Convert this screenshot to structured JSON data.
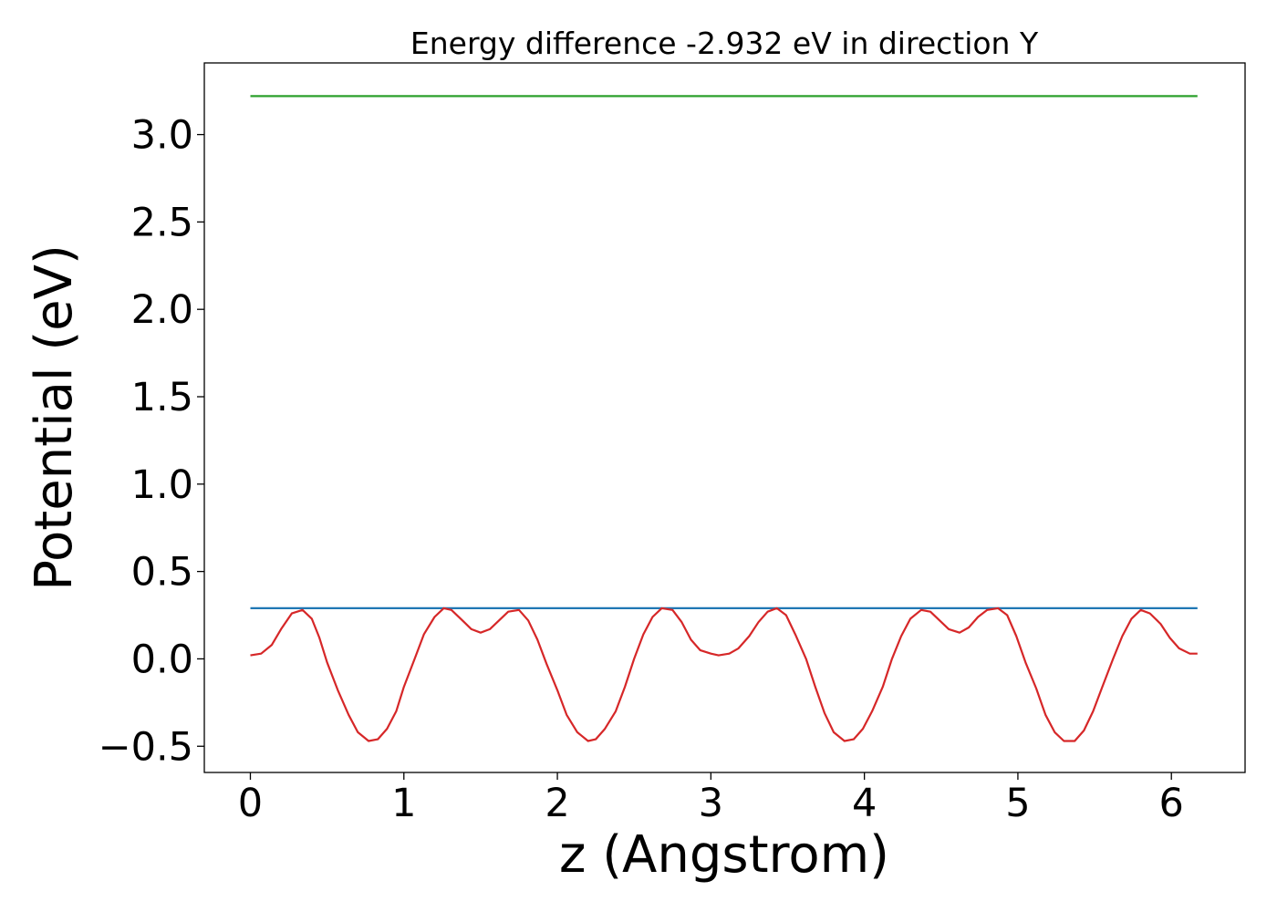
{
  "chart_data": {
    "type": "line",
    "title": "Energy difference -2.932 eV in direction Y",
    "xlabel": "z (Angstrom)",
    "ylabel": "Potential (eV)",
    "xlim": [
      -0.3,
      6.48
    ],
    "ylim": [
      -0.65,
      3.41
    ],
    "xticks": [
      0,
      1,
      2,
      3,
      4,
      5,
      6
    ],
    "xtick_labels": [
      "0",
      "1",
      "2",
      "3",
      "4",
      "5",
      "6"
    ],
    "yticks": [
      -0.5,
      0.0,
      0.5,
      1.0,
      1.5,
      2.0,
      2.5,
      3.0
    ],
    "ytick_labels": [
      "−0.5",
      "0.0",
      "0.5",
      "1.0",
      "1.5",
      "2.0",
      "2.5",
      "3.0"
    ],
    "grid": false,
    "legend": "none",
    "series": [
      {
        "color": "#2ca02c",
        "x": [
          0,
          6.17
        ],
        "y": [
          3.22,
          3.22
        ]
      },
      {
        "color": "#1f77b4",
        "x": [
          0,
          6.17
        ],
        "y": [
          0.29,
          0.29
        ]
      },
      {
        "color": "#d62728",
        "x": [
          0.0,
          0.07,
          0.14,
          0.2,
          0.27,
          0.34,
          0.4,
          0.45,
          0.5,
          0.57,
          0.64,
          0.7,
          0.77,
          0.83,
          0.89,
          0.95,
          1.0,
          1.07,
          1.13,
          1.2,
          1.26,
          1.31,
          1.37,
          1.44,
          1.5,
          1.56,
          1.62,
          1.68,
          1.75,
          1.81,
          1.87,
          1.93,
          2.0,
          2.06,
          2.13,
          2.2,
          2.25,
          2.31,
          2.38,
          2.44,
          2.5,
          2.56,
          2.62,
          2.68,
          2.75,
          2.81,
          2.87,
          2.93,
          3.0,
          3.05,
          3.12,
          3.18,
          3.25,
          3.31,
          3.37,
          3.43,
          3.49,
          3.55,
          3.62,
          3.68,
          3.74,
          3.8,
          3.87,
          3.93,
          3.99,
          4.05,
          4.12,
          4.18,
          4.24,
          4.3,
          4.37,
          4.43,
          4.49,
          4.55,
          4.62,
          4.68,
          4.74,
          4.8,
          4.87,
          4.93,
          4.99,
          5.05,
          5.12,
          5.18,
          5.24,
          5.3,
          5.37,
          5.43,
          5.49,
          5.55,
          5.62,
          5.68,
          5.74,
          5.8,
          5.86,
          5.93,
          5.99,
          6.05,
          6.12,
          6.17
        ],
        "y": [
          0.02,
          0.03,
          0.08,
          0.17,
          0.26,
          0.28,
          0.23,
          0.12,
          -0.02,
          -0.18,
          -0.32,
          -0.42,
          -0.47,
          -0.46,
          -0.4,
          -0.3,
          -0.16,
          0.0,
          0.14,
          0.24,
          0.29,
          0.28,
          0.23,
          0.17,
          0.15,
          0.17,
          0.22,
          0.27,
          0.28,
          0.22,
          0.11,
          -0.03,
          -0.18,
          -0.32,
          -0.42,
          -0.47,
          -0.46,
          -0.4,
          -0.3,
          -0.16,
          0.0,
          0.14,
          0.24,
          0.29,
          0.28,
          0.21,
          0.11,
          0.05,
          0.03,
          0.02,
          0.03,
          0.06,
          0.13,
          0.21,
          0.27,
          0.29,
          0.25,
          0.14,
          0.0,
          -0.16,
          -0.31,
          -0.42,
          -0.47,
          -0.46,
          -0.4,
          -0.3,
          -0.16,
          0.0,
          0.13,
          0.23,
          0.28,
          0.27,
          0.22,
          0.17,
          0.15,
          0.18,
          0.24,
          0.28,
          0.29,
          0.25,
          0.13,
          -0.02,
          -0.17,
          -0.32,
          -0.42,
          -0.47,
          -0.47,
          -0.41,
          -0.3,
          -0.16,
          0.0,
          0.13,
          0.23,
          0.28,
          0.26,
          0.2,
          0.12,
          0.06,
          0.03,
          0.03
        ]
      }
    ]
  }
}
